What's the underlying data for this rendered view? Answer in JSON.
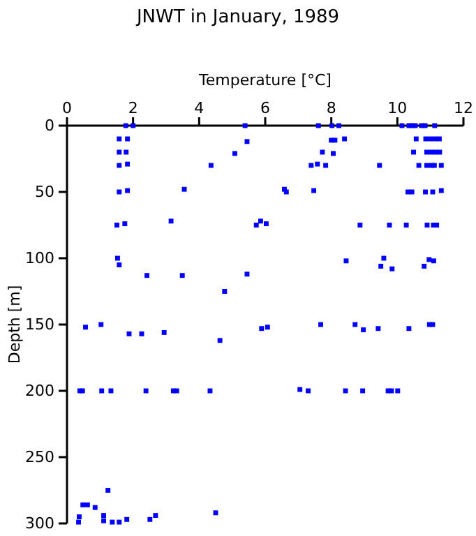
{
  "chart_data": {
    "type": "scatter",
    "title": "JNWT in January, 1989",
    "xlabel": "Temperature [°C]",
    "ylabel": "Depth [m]",
    "xlim": [
      0,
      12
    ],
    "xticks": [
      0,
      2,
      4,
      6,
      8,
      10,
      12
    ],
    "ylim": [
      300,
      0
    ],
    "yticks": [
      0,
      50,
      100,
      150,
      200,
      250,
      300
    ],
    "marker": "square",
    "series": [
      {
        "color": "#0000ff",
        "x": [
          1.78,
          2.0,
          5.39,
          7.61,
          8.02,
          8.23,
          10.14,
          10.35,
          10.44,
          10.54,
          10.73,
          10.84,
          11.13,
          1.58,
          1.83,
          5.45,
          8.0,
          8.11,
          8.4,
          10.57,
          10.86,
          11.0,
          11.14,
          11.27,
          1.58,
          1.79,
          5.08,
          7.73,
          8.06,
          10.49,
          10.89,
          11.03,
          11.16,
          11.28,
          1.58,
          1.83,
          4.36,
          7.39,
          7.58,
          7.83,
          9.46,
          10.65,
          10.89,
          11.03,
          11.12,
          11.33,
          1.58,
          1.83,
          3.55,
          6.58,
          6.64,
          7.47,
          10.32,
          10.44,
          10.85,
          11.07,
          11.33,
          1.51,
          1.75,
          3.15,
          5.73,
          5.86,
          6.03,
          8.87,
          9.76,
          10.27,
          10.9,
          11.09,
          11.19,
          1.53,
          1.58,
          2.42,
          3.49,
          5.45,
          4.77,
          8.45,
          9.59,
          9.5,
          9.84,
          10.81,
          10.96,
          11.1,
          0.56,
          1.03,
          1.88,
          2.26,
          2.94,
          4.63,
          5.89,
          6.07,
          7.68,
          8.72,
          8.97,
          9.42,
          10.35,
          10.97,
          11.07,
          0.39,
          0.47,
          1.05,
          1.33,
          2.39,
          3.22,
          3.32,
          4.33,
          7.05,
          7.3,
          8.43,
          8.95,
          9.72,
          9.82,
          10.01,
          1.24,
          0.48,
          0.62,
          0.85,
          0.37,
          0.35,
          1.11,
          1.11,
          1.37,
          1.58,
          1.81,
          2.51,
          2.68,
          4.5
        ],
        "values": [
          0,
          0,
          0,
          0,
          0,
          0,
          0,
          0,
          0,
          0,
          0,
          0,
          0,
          10,
          10,
          12,
          11,
          11,
          10,
          10,
          10,
          10,
          10,
          10,
          20,
          20,
          21,
          20,
          21,
          20,
          20,
          20,
          20,
          20,
          30,
          29,
          30,
          30,
          29,
          30,
          30,
          30,
          30,
          30,
          30,
          30,
          50,
          49,
          48,
          48,
          50,
          49,
          50,
          50,
          50,
          50,
          49,
          75,
          74,
          72,
          75,
          72,
          74,
          75,
          75,
          75,
          75,
          75,
          75,
          100,
          105,
          113,
          113,
          112,
          125,
          102,
          100,
          106,
          108,
          106,
          101,
          102,
          152,
          150,
          157,
          157,
          156,
          162,
          153,
          152,
          150,
          150,
          154,
          153,
          153,
          150,
          150,
          200,
          200,
          200,
          200,
          200,
          200,
          200,
          200,
          199,
          200,
          200,
          200,
          200,
          200,
          200,
          275,
          286,
          286,
          288,
          295,
          299,
          294,
          298,
          299,
          299,
          297,
          297,
          294,
          292
        ]
      }
    ]
  }
}
